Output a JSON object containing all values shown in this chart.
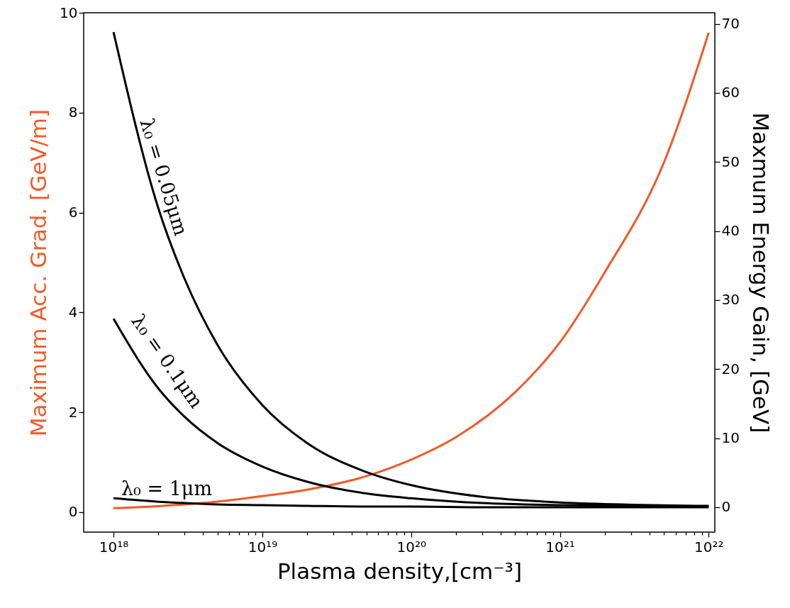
{
  "chart_data": {
    "type": "line",
    "xlabel": "Plasma density,[cm⁻³]",
    "ylabel": "Maximum Acc. Grad. [GeV/m]",
    "y2label": "Maxmum Energy Gain, [GeV]",
    "log": "x",
    "grid": false,
    "xlim": [
      6.3e+17,
      1.1e+22
    ],
    "ylim": [
      -0.4,
      10
    ],
    "y2lim": [
      -3.6,
      71.6
    ],
    "xticks": [
      {
        "value": 1e+18,
        "label": "10¹⁸"
      },
      {
        "value": 2e+18,
        "label": null
      },
      {
        "value": 3e+18,
        "label": null
      },
      {
        "value": 4e+18,
        "label": null
      },
      {
        "value": 5e+18,
        "label": null
      },
      {
        "value": 6e+18,
        "label": null
      },
      {
        "value": 7e+18,
        "label": null
      },
      {
        "value": 8e+18,
        "label": null
      },
      {
        "value": 9e+18,
        "label": null
      },
      {
        "value": 1e+19,
        "label": "10¹⁹"
      },
      {
        "value": 2e+19,
        "label": null
      },
      {
        "value": 3e+19,
        "label": null
      },
      {
        "value": 4e+19,
        "label": null
      },
      {
        "value": 5e+19,
        "label": null
      },
      {
        "value": 6e+19,
        "label": null
      },
      {
        "value": 7e+19,
        "label": null
      },
      {
        "value": 8e+19,
        "label": null
      },
      {
        "value": 9e+19,
        "label": null
      },
      {
        "value": 1e+20,
        "label": "10²⁰"
      },
      {
        "value": 2e+20,
        "label": null
      },
      {
        "value": 3e+20,
        "label": null
      },
      {
        "value": 4e+20,
        "label": null
      },
      {
        "value": 5e+20,
        "label": null
      },
      {
        "value": 6e+20,
        "label": null
      },
      {
        "value": 7e+20,
        "label": null
      },
      {
        "value": 8e+20,
        "label": null
      },
      {
        "value": 9e+20,
        "label": null
      },
      {
        "value": 1e+21,
        "label": "10²¹"
      },
      {
        "value": 2e+21,
        "label": null
      },
      {
        "value": 3e+21,
        "label": null
      },
      {
        "value": 4e+21,
        "label": null
      },
      {
        "value": 5e+21,
        "label": null
      },
      {
        "value": 6e+21,
        "label": null
      },
      {
        "value": 7e+21,
        "label": null
      },
      {
        "value": 8e+21,
        "label": null
      },
      {
        "value": 9e+21,
        "label": null
      },
      {
        "value": 1e+22,
        "label": "10²²"
      }
    ],
    "yticks": [
      0,
      2,
      4,
      6,
      8,
      10
    ],
    "y2ticks": [
      0,
      10,
      20,
      30,
      40,
      50,
      60,
      70
    ],
    "series": [
      {
        "color": "#f05a28",
        "x": [
          1e+18,
          2e+18,
          5e+18,
          1e+19,
          2e+19,
          5e+19,
          1e+20,
          2e+20,
          5e+20,
          1e+21,
          2e+21,
          5e+21,
          1e+22
        ],
        "values": [
          0.08,
          0.12,
          0.21,
          0.32,
          0.45,
          0.72,
          1.05,
          1.5,
          2.4,
          3.4,
          4.8,
          7.0,
          9.6
        ]
      },
      {
        "color": "#000000",
        "axis": "y2",
        "x": [
          1e+18,
          2e+18,
          3e+18,
          5e+18,
          1e+19,
          2e+19,
          5e+19,
          1e+20,
          3e+20,
          1e+21,
          1e+22
        ],
        "values": [
          68.8,
          43.3,
          33.1,
          23.5,
          14.8,
          9.3,
          5.1,
          3.2,
          1.5,
          0.7,
          0.2
        ]
      },
      {
        "color": "#000000",
        "axis": "y2",
        "x": [
          1e+18,
          2e+18,
          3e+18,
          5e+18,
          1e+19,
          2e+19,
          5e+19,
          1e+20,
          3e+20,
          1e+21,
          1e+22
        ],
        "values": [
          27.3,
          17.2,
          13.1,
          9.3,
          5.9,
          3.7,
          2.0,
          1.3,
          0.6,
          0.3,
          0.1
        ]
      },
      {
        "color": "#000000",
        "axis": "y2",
        "x": [
          1e+18,
          2e+18,
          3e+18,
          5e+18,
          1e+19,
          2e+19,
          5e+19,
          1e+20,
          3e+20,
          1e+21,
          1e+22
        ],
        "values": [
          1.3,
          0.8,
          0.6,
          0.4,
          0.3,
          0.2,
          0.1,
          0.1,
          0.0,
          0.0,
          0.0
        ]
      }
    ],
    "annotations": [
      "λ₀ = 0.05μm",
      "λ₀ = 0.1μm",
      "λ₀ = 1μm"
    ]
  }
}
